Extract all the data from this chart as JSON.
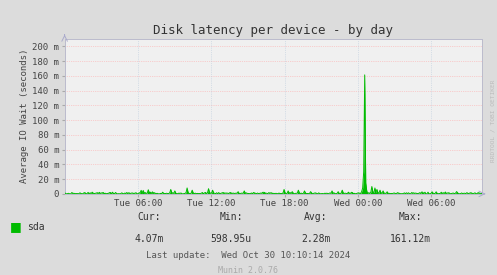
{
  "title": "Disk latency per device - by day",
  "ylabel": "Average IO Wait (seconds)",
  "bg_color": "#dcdcdc",
  "plot_bg_color": "#f0f0f0",
  "hgrid_color": "#ffaaaa",
  "vgrid_color": "#bbccdd",
  "line_color": "#00bb00",
  "fill_color": "#00bb00",
  "ytick_labels": [
    "0",
    "20 m",
    "40 m",
    "60 m",
    "80 m",
    "100 m",
    "120 m",
    "140 m",
    "160 m",
    "180 m",
    "200 m"
  ],
  "ytick_values": [
    0,
    0.02,
    0.04,
    0.06,
    0.08,
    0.1,
    0.12,
    0.14,
    0.16,
    0.18,
    0.2
  ],
  "ylim": [
    0,
    0.2105
  ],
  "xtick_labels": [
    "Tue 06:00",
    "Tue 12:00",
    "Tue 18:00",
    "Wed 00:00",
    "Wed 06:00"
  ],
  "legend_label": "sda",
  "legend_color": "#00bb00",
  "cur_label": "Cur:",
  "cur_val": "4.07m",
  "min_label": "Min:",
  "min_val": "598.95u",
  "avg_label": "Avg:",
  "avg_val": "2.28m",
  "max_label": "Max:",
  "max_val": "161.12m",
  "last_update": "Last update:  Wed Oct 30 10:10:14 2024",
  "munin_label": "Munin 2.0.76",
  "rrdtool_label": "RRDTOOL / TOBI OETIKER",
  "title_color": "#333333",
  "text_color": "#555555",
  "axis_color": "#aaaacc"
}
